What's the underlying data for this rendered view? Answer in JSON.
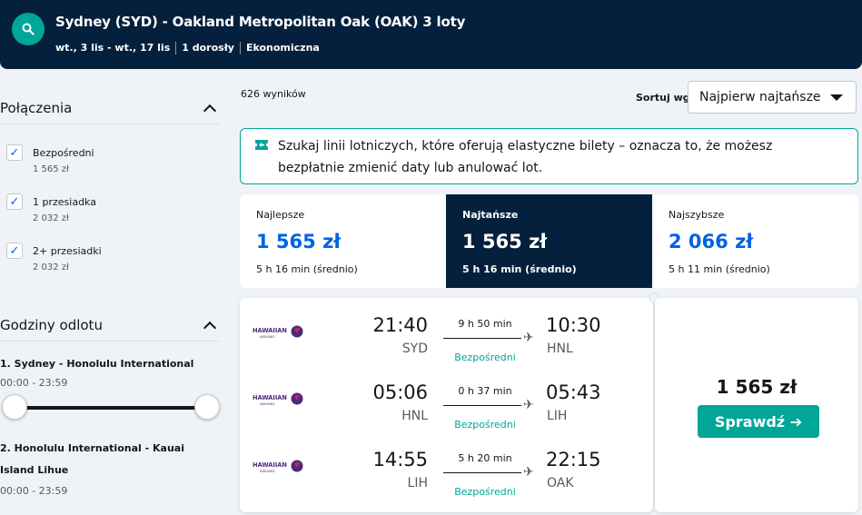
{
  "header": {
    "title": "Sydney (SYD) - Oakland Metropolitan Oak (OAK) 3 loty",
    "dates": "wt., 3 lis - wt., 17 lis",
    "passengers": "1 dorosły",
    "cabin": "Ekonomiczna",
    "search_icon": "search-icon"
  },
  "filters": {
    "stops": {
      "title": "Połączenia",
      "options": [
        {
          "label": "Bezpośredni",
          "price": "1 565 zł",
          "checked": true
        },
        {
          "label": "1 przesiadka",
          "price": "2 032 zł",
          "checked": true
        },
        {
          "label": "2+ przesiadki",
          "price": "2 032 zł",
          "checked": true
        }
      ]
    },
    "times": {
      "title": "Godziny odlotu",
      "legs": [
        {
          "label": "1. Sydney - Honolulu International",
          "range": "00:00 - 23:59"
        },
        {
          "label": "2. Honolulu International - Kauai Island Lihue",
          "range": "00:00 - 23:59"
        }
      ]
    }
  },
  "results": {
    "count": "626 wyników",
    "sort_label": "Sortuj wg",
    "sort_value": "Najpierw najtańsze"
  },
  "banner": {
    "text": "Szukaj linii lotniczych, które oferują elastyczne bilety – oznacza to, że możesz bezpłatnie zmienić daty lub anulować lot.",
    "icon": "ticket-icon",
    "accent": "#00a698"
  },
  "tabs": [
    {
      "name": "Najlepsze",
      "price": "1 565 zł",
      "time": "5 h 16 min (średnio)",
      "active": false
    },
    {
      "name": "Najtańsze",
      "price": "1 565 zł",
      "time": "5 h 16 min (średnio)",
      "active": true
    },
    {
      "name": "Najszybsze",
      "price": "2 066 zł",
      "time": "5 h 11 min (średnio)",
      "active": false
    }
  ],
  "ticket": {
    "legs": [
      {
        "airline": "HAWAIIAN",
        "airline_sub": "AIRLINES.",
        "dep_time": "21:40",
        "dep_code": "SYD",
        "duration": "9 h 50 min",
        "stops": "Bezpośredni",
        "arr_time": "10:30",
        "arr_code": "HNL"
      },
      {
        "airline": "HAWAIIAN",
        "airline_sub": "AIRLINES.",
        "dep_time": "05:06",
        "dep_code": "HNL",
        "duration": "0 h 37 min",
        "stops": "Bezpośredni",
        "arr_time": "05:43",
        "arr_code": "LIH"
      },
      {
        "airline": "HAWAIIAN",
        "airline_sub": "AIRLINES.",
        "dep_time": "14:55",
        "dep_code": "LIH",
        "duration": "5 h 20 min",
        "stops": "Bezpośredni",
        "arr_time": "22:15",
        "arr_code": "OAK"
      }
    ],
    "price": "1 565 zł",
    "button_label": "Sprawdź ➔"
  },
  "colors": {
    "navy": "#05203c",
    "teal": "#00a698",
    "blue": "#0062e3",
    "hawaiian_purple": "#4b2a7b",
    "hawaiian_pink": "#c8235c"
  }
}
